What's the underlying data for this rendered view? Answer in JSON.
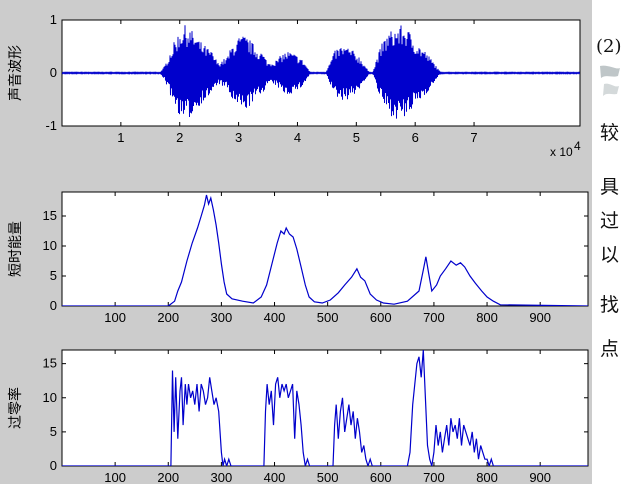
{
  "side_text": {
    "top": "(2)",
    "chars": [
      "较",
      "具",
      "过",
      "以",
      "找",
      "点"
    ]
  },
  "colors": {
    "line": "#0000cc",
    "figure_bg": "#cccccc",
    "axes_bg": "#ffffff"
  },
  "chart_data": [
    {
      "type": "line",
      "ylabel": "声音波形",
      "xlim": [
        0,
        88000
      ],
      "ylim": [
        -1,
        1
      ],
      "x_ticks": [
        10000,
        20000,
        30000,
        40000,
        50000,
        60000,
        70000
      ],
      "x_tick_labels": [
        "1",
        "2",
        "3",
        "4",
        "5",
        "6",
        "7"
      ],
      "x_exponent_label": "x 10",
      "x_exponent_power": "4",
      "y_ticks": [
        -1,
        0,
        1
      ],
      "y_tick_labels": [
        "-1",
        "0",
        "1"
      ],
      "series": [
        {
          "x": [
            17500,
            18500,
            19500,
            20500,
            21500,
            22500,
            23500,
            24500,
            25500,
            26500,
            28000,
            29000,
            30000,
            31000,
            32000,
            33000,
            34000,
            35000,
            36500,
            37500,
            38500,
            39500,
            40500,
            41500,
            45500,
            46500,
            47500,
            48500,
            49500,
            50500,
            51500,
            53500,
            54500,
            55500,
            56500,
            57500,
            58500,
            59500,
            60500,
            61500,
            62500,
            63500
          ],
          "amplitude": [
            0.15,
            0.45,
            0.7,
            0.92,
            0.88,
            0.75,
            0.6,
            0.5,
            0.4,
            0.2,
            0.3,
            0.55,
            0.68,
            0.72,
            0.62,
            0.48,
            0.4,
            0.2,
            0.25,
            0.38,
            0.42,
            0.36,
            0.3,
            0.15,
            0.2,
            0.45,
            0.52,
            0.5,
            0.42,
            0.32,
            0.15,
            0.3,
            0.6,
            0.78,
            0.85,
            0.9,
            0.88,
            0.7,
            0.55,
            0.45,
            0.3,
            0.15
          ]
        }
      ]
    },
    {
      "type": "line",
      "ylabel": "短时能量",
      "xlim": [
        0,
        990
      ],
      "ylim": [
        0,
        19
      ],
      "x_ticks": [
        100,
        200,
        300,
        400,
        500,
        600,
        700,
        800,
        900
      ],
      "x_tick_labels": [
        "100",
        "200",
        "300",
        "400",
        "500",
        "600",
        "700",
        "800",
        "900"
      ],
      "y_ticks": [
        0,
        5,
        10,
        15
      ],
      "y_tick_labels": [
        "0",
        "5",
        "10",
        "15"
      ],
      "series": [
        {
          "x": [
            0,
            200,
            212,
            218,
            225,
            235,
            245,
            255,
            262,
            268,
            272,
            276,
            280,
            285,
            290,
            295,
            300,
            305,
            310,
            320,
            340,
            360,
            375,
            385,
            395,
            405,
            412,
            418,
            422,
            428,
            435,
            442,
            450,
            458,
            465,
            475,
            490,
            505,
            520,
            532,
            545,
            555,
            562,
            570,
            580,
            592,
            605,
            625,
            650,
            672,
            680,
            685,
            690,
            696,
            705,
            712,
            722,
            732,
            742,
            750,
            758,
            768,
            778,
            790,
            800,
            812,
            825,
            990
          ],
          "y": [
            0,
            0,
            0.8,
            2.5,
            4.0,
            7.5,
            10.5,
            13.0,
            15.0,
            16.8,
            18.5,
            17.0,
            18.0,
            16.0,
            13.5,
            10.5,
            7.0,
            4.0,
            2.0,
            1.2,
            0.8,
            0.5,
            1.5,
            3.5,
            7.0,
            10.5,
            12.5,
            12.0,
            13.0,
            12.0,
            11.5,
            9.5,
            6.5,
            3.5,
            1.5,
            0.7,
            0.5,
            1.0,
            2.2,
            3.5,
            4.8,
            6.2,
            4.8,
            4.2,
            2.0,
            1.0,
            0.5,
            0.3,
            0.8,
            2.5,
            6.0,
            8.2,
            5.5,
            2.5,
            3.5,
            5.0,
            6.2,
            7.5,
            6.8,
            7.2,
            6.5,
            5.0,
            3.8,
            2.5,
            1.5,
            0.8,
            0.2,
            0
          ]
        }
      ]
    },
    {
      "type": "line",
      "ylabel": "过零率",
      "xlim": [
        0,
        990
      ],
      "ylim": [
        0,
        17
      ],
      "x_ticks": [
        100,
        200,
        300,
        400,
        500,
        600,
        700,
        800,
        900
      ],
      "x_tick_labels": [
        "100",
        "200",
        "300",
        "400",
        "500",
        "600",
        "700",
        "800",
        "900"
      ],
      "y_ticks": [
        0,
        5,
        10,
        15
      ],
      "y_tick_labels": [
        "0",
        "5",
        "10",
        "15"
      ],
      "series": [
        {
          "x": [
            0,
            205,
            208,
            211,
            214,
            218,
            222,
            225,
            228,
            232,
            235,
            238,
            242,
            246,
            250,
            254,
            258,
            262,
            266,
            270,
            274,
            278,
            282,
            286,
            290,
            295,
            300,
            303,
            306,
            310,
            314,
            318,
            380,
            383,
            386,
            390,
            394,
            398,
            402,
            406,
            410,
            414,
            418,
            422,
            426,
            430,
            434,
            438,
            442,
            446,
            450,
            454,
            458,
            462,
            466,
            470,
            510,
            513,
            516,
            520,
            524,
            528,
            532,
            536,
            540,
            544,
            548,
            552,
            556,
            560,
            564,
            568,
            572,
            576,
            580,
            584,
            650,
            655,
            660,
            664,
            668,
            672,
            676,
            680,
            684,
            688,
            692,
            696,
            700,
            704,
            708,
            712,
            716,
            720,
            724,
            728,
            732,
            736,
            740,
            744,
            748,
            752,
            756,
            760,
            764,
            768,
            772,
            776,
            780,
            784,
            788,
            792,
            796,
            800,
            804,
            808,
            812,
            990
          ],
          "y": [
            0,
            0,
            14,
            5,
            13,
            4,
            11,
            13,
            6,
            12,
            9,
            12,
            10,
            11,
            9,
            12,
            8,
            12,
            11,
            9,
            10,
            13,
            11,
            9,
            10,
            8,
            2,
            0,
            1,
            0,
            1,
            0,
            0,
            8,
            12,
            9,
            11,
            6,
            12,
            13,
            10,
            12,
            11,
            12,
            10,
            11,
            12,
            4,
            11,
            9,
            6,
            2,
            0,
            1,
            0,
            0,
            0,
            6,
            9,
            4,
            8,
            10,
            5,
            7,
            9,
            6,
            8,
            4,
            7,
            5,
            2,
            3,
            1,
            0,
            1,
            0,
            0,
            2,
            9,
            12,
            15,
            16,
            13,
            17,
            10,
            3,
            1,
            0,
            2,
            6,
            3,
            5,
            2,
            4,
            6,
            3,
            7,
            5,
            6,
            4,
            7,
            3,
            6,
            5,
            4,
            3,
            5,
            2,
            4,
            1,
            3,
            2,
            1,
            1,
            0,
            1,
            0,
            0
          ]
        }
      ]
    }
  ]
}
